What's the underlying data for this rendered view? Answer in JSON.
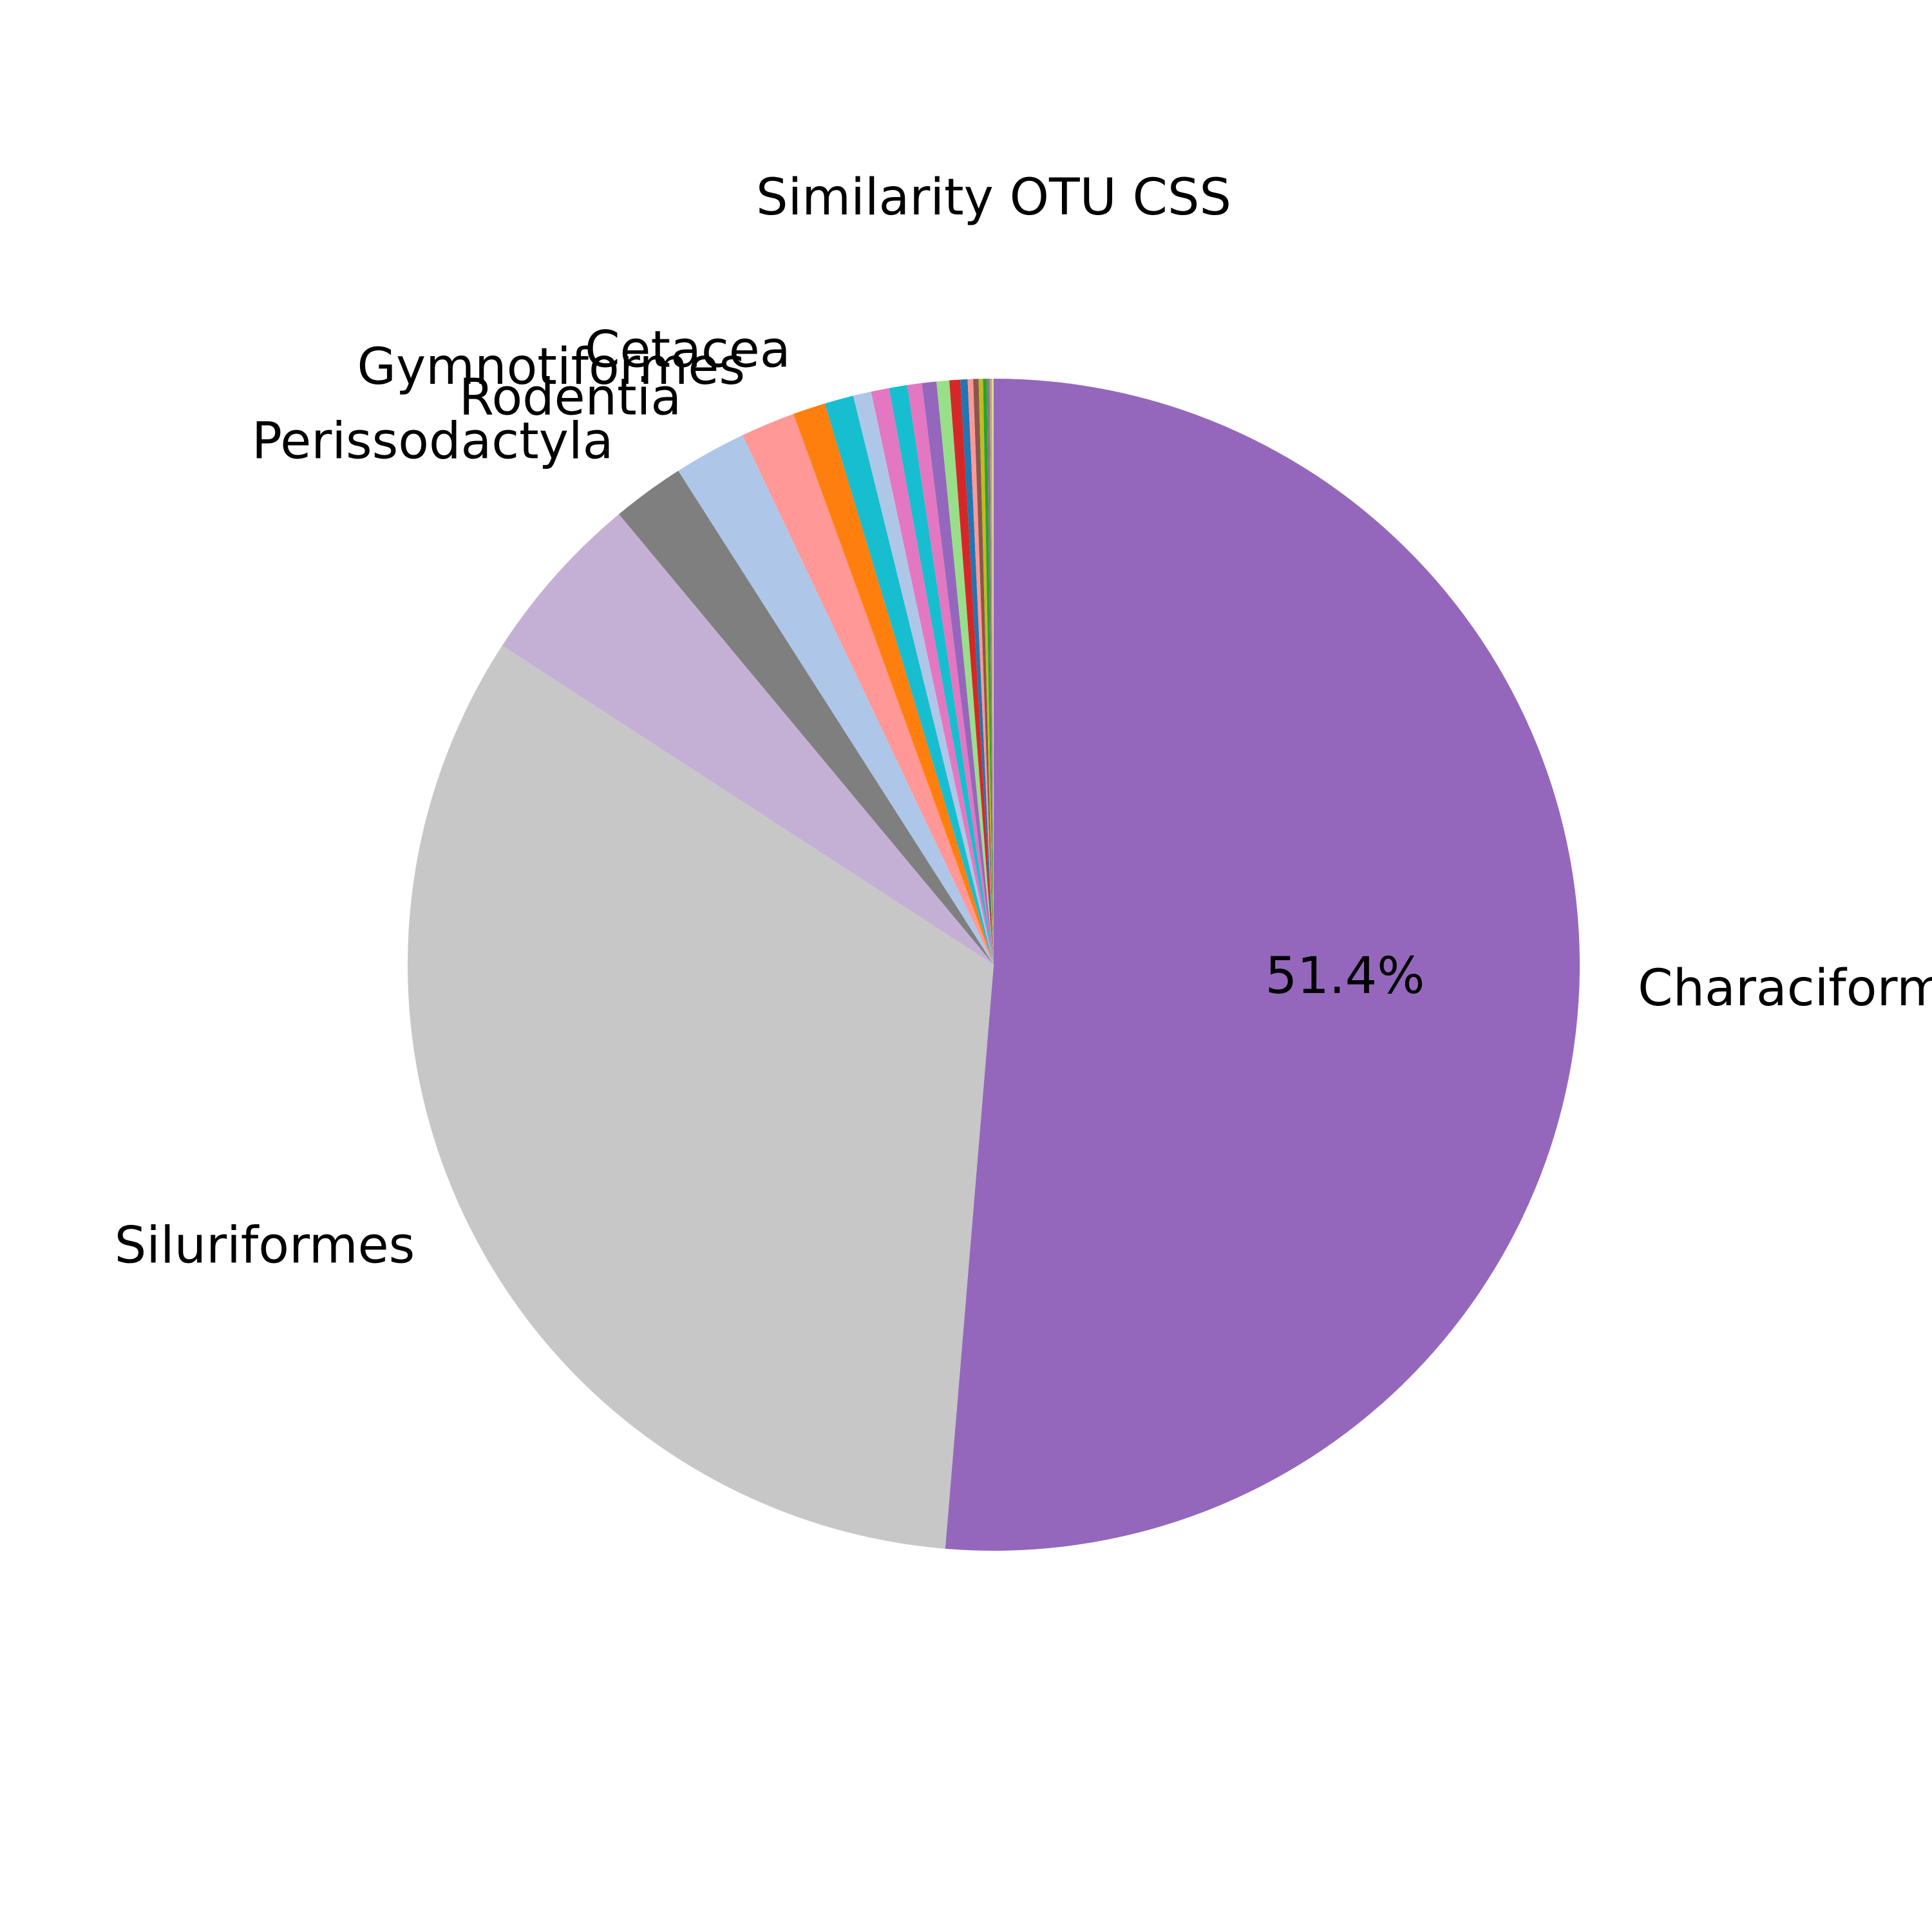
{
  "chart_data": {
    "type": "pie",
    "title": "Similarity OTU CSS",
    "start_angle_deg": 270,
    "direction": "clockwise",
    "slices": [
      {
        "label": "Characiformes",
        "value": 51.4,
        "color": "#9467bd",
        "show_label": true,
        "show_pct": true
      },
      {
        "label": "Siluriformes",
        "value": 32.9,
        "color": "#c7c7c7",
        "show_label": true,
        "show_pct": false
      },
      {
        "label": "",
        "value": 4.8,
        "color": "#c5b0d5",
        "show_label": false,
        "show_pct": false
      },
      {
        "label": "Perissodactyla",
        "value": 2.0,
        "color": "#7f7f7f",
        "show_label": true,
        "show_pct": false
      },
      {
        "label": "Rodentia",
        "value": 2.0,
        "color": "#aec7e8",
        "show_label": true,
        "show_pct": false
      },
      {
        "label": "Gymnotiformes",
        "value": 1.5,
        "color": "#ff9896",
        "show_label": true,
        "show_pct": false
      },
      {
        "label": "Cetacea",
        "value": 0.9,
        "color": "#ff7f0e",
        "show_label": true,
        "show_pct": false
      },
      {
        "label": "",
        "value": 0.8,
        "color": "#17becf",
        "show_label": false,
        "show_pct": false
      },
      {
        "label": "",
        "value": 0.5,
        "color": "#aec7e8",
        "show_label": false,
        "show_pct": false
      },
      {
        "label": "",
        "value": 0.5,
        "color": "#e377c2",
        "show_label": false,
        "show_pct": false
      },
      {
        "label": "",
        "value": 0.5,
        "color": "#17becf",
        "show_label": false,
        "show_pct": false
      },
      {
        "label": "",
        "value": 0.4,
        "color": "#e377c2",
        "show_label": false,
        "show_pct": false
      },
      {
        "label": "",
        "value": 0.4,
        "color": "#9467bd",
        "show_label": false,
        "show_pct": false
      },
      {
        "label": "",
        "value": 0.35,
        "color": "#98df8a",
        "show_label": false,
        "show_pct": false
      },
      {
        "label": "",
        "value": 0.3,
        "color": "#d62728",
        "show_label": false,
        "show_pct": false
      },
      {
        "label": "",
        "value": 0.2,
        "color": "#1f77b4",
        "show_label": false,
        "show_pct": false
      },
      {
        "label": "",
        "value": 0.15,
        "color": "#ff9896",
        "show_label": false,
        "show_pct": false
      },
      {
        "label": "",
        "value": 0.15,
        "color": "#8c564b",
        "show_label": false,
        "show_pct": false
      },
      {
        "label": "",
        "value": 0.12,
        "color": "#bcbd22",
        "show_label": false,
        "show_pct": false
      },
      {
        "label": "",
        "value": 0.1,
        "color": "#2ca02c",
        "show_label": false,
        "show_pct": false
      },
      {
        "label": "",
        "value": 0.08,
        "color": "#7f7f7f",
        "show_label": false,
        "show_pct": false
      },
      {
        "label": "",
        "value": 0.06,
        "color": "#c49c94",
        "show_label": false,
        "show_pct": false
      },
      {
        "label": "",
        "value": 0.05,
        "color": "#dbdb8d",
        "show_label": false,
        "show_pct": false
      }
    ]
  }
}
